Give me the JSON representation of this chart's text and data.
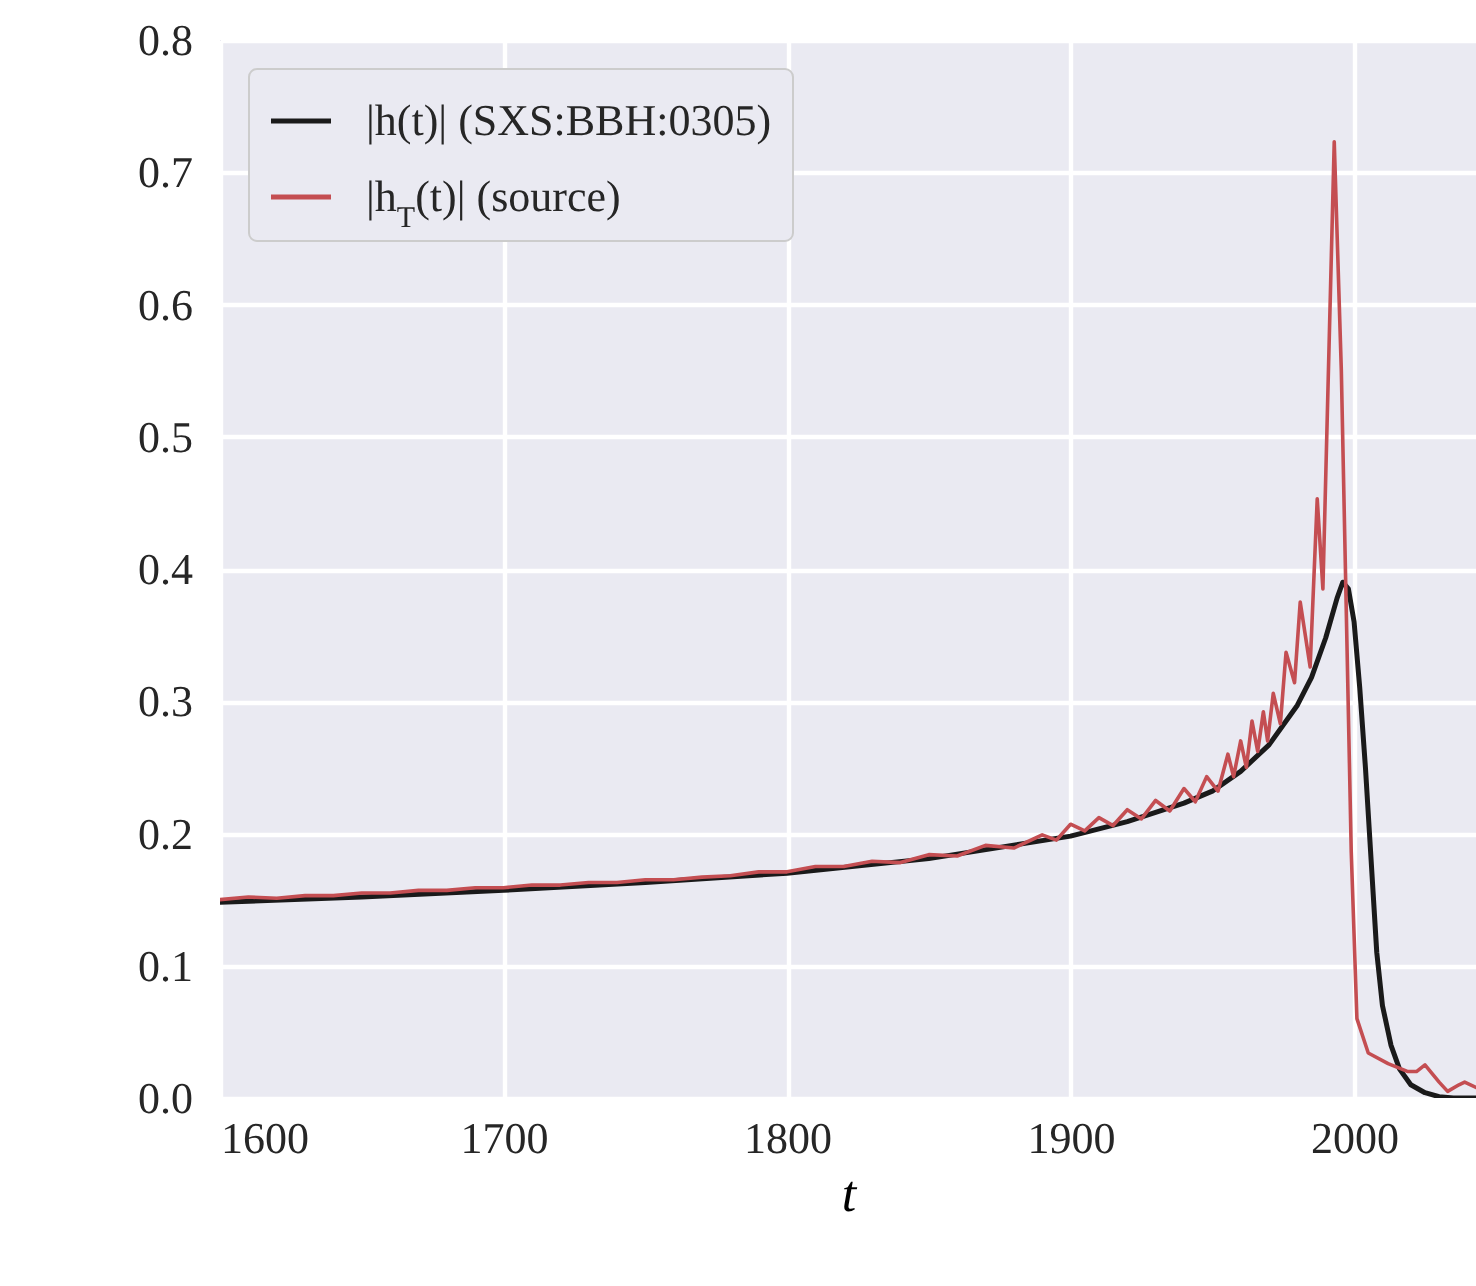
{
  "chart_data": {
    "type": "line",
    "xlabel": "t",
    "xlim": [
      1600,
      2043
    ],
    "xticks": [
      1600,
      1700,
      1800,
      1900,
      2000
    ],
    "ylim": [
      0,
      0.8
    ],
    "yticks": [
      {
        "value": 0,
        "label": "0.0"
      },
      0.1,
      0.2,
      0.3,
      0.4,
      0.5,
      0.6,
      0.7,
      0.8
    ],
    "grid": true,
    "legend": "top left",
    "series": [
      {
        "name": "|h(t)| (SXS:BBH:0305)",
        "color": "#1a1a1a",
        "x": [
          1600,
          1650,
          1700,
          1750,
          1800,
          1850,
          1900,
          1920,
          1940,
          1950,
          1960,
          1970,
          1980,
          1985,
          1990,
          1994,
          1996,
          1998,
          2000,
          2002,
          2004,
          2006,
          2008,
          2010,
          2013,
          2016,
          2020,
          2025,
          2030,
          2035,
          2043
        ],
        "values": [
          0.148,
          0.152,
          0.157,
          0.163,
          0.17,
          0.181,
          0.198,
          0.209,
          0.223,
          0.232,
          0.247,
          0.267,
          0.297,
          0.318,
          0.348,
          0.378,
          0.39,
          0.385,
          0.36,
          0.31,
          0.25,
          0.18,
          0.11,
          0.07,
          0.04,
          0.022,
          0.01,
          0.004,
          0.001,
          0,
          0
        ]
      },
      {
        "name": "|h$_{T}$(t)| (source)",
        "color": "#c44e52",
        "x": [
          1600,
          1610,
          1620,
          1630,
          1640,
          1650,
          1660,
          1670,
          1680,
          1690,
          1700,
          1710,
          1720,
          1730,
          1740,
          1750,
          1760,
          1770,
          1780,
          1790,
          1800,
          1810,
          1820,
          1830,
          1840,
          1850,
          1860,
          1870,
          1880,
          1890,
          1895,
          1900,
          1905,
          1910,
          1915,
          1920,
          1925,
          1930,
          1935,
          1940,
          1944,
          1948,
          1952,
          1955.5,
          1957.5,
          1960,
          1962,
          1964,
          1966,
          1968,
          1969.5,
          1971.5,
          1974,
          1976,
          1979,
          1981,
          1984.5,
          1987,
          1989,
          1993,
          1995.5,
          1999,
          2001,
          2005,
          2012,
          2019,
          2022,
          2025,
          2030,
          2033,
          2037,
          2039,
          2043
        ],
        "values": [
          0.15,
          0.152,
          0.151,
          0.153,
          0.153,
          0.155,
          0.155,
          0.157,
          0.157,
          0.159,
          0.159,
          0.161,
          0.161,
          0.163,
          0.163,
          0.165,
          0.165,
          0.167,
          0.168,
          0.171,
          0.171,
          0.175,
          0.175,
          0.179,
          0.178,
          0.184,
          0.183,
          0.191,
          0.189,
          0.199,
          0.195,
          0.207,
          0.202,
          0.212,
          0.206,
          0.218,
          0.211,
          0.225,
          0.217,
          0.234,
          0.224,
          0.243,
          0.232,
          0.26,
          0.243,
          0.27,
          0.25,
          0.285,
          0.262,
          0.292,
          0.27,
          0.306,
          0.283,
          0.337,
          0.314,
          0.375,
          0.326,
          0.453,
          0.385,
          0.723,
          0.55,
          0.186,
          0.06,
          0.034,
          0.026,
          0.02,
          0.02,
          0.025,
          0.012,
          0.005,
          0.01,
          0.012,
          0.008
        ]
      }
    ]
  }
}
